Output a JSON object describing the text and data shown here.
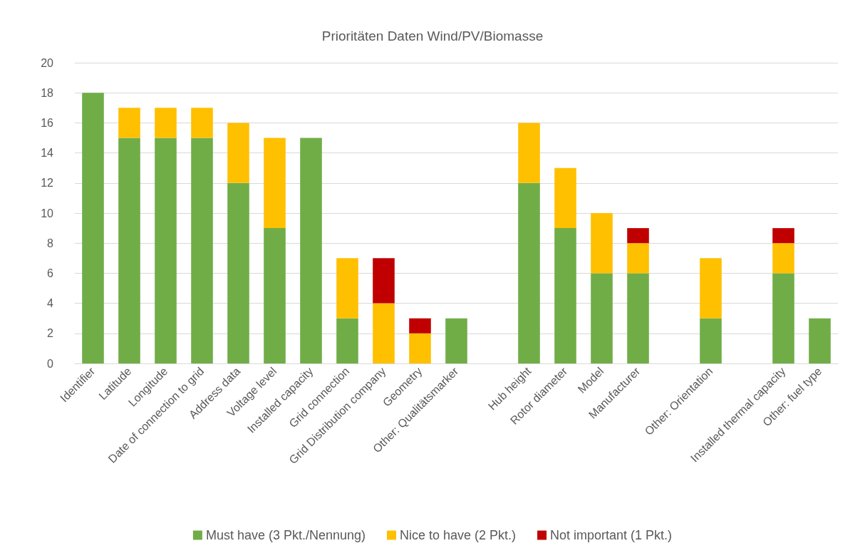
{
  "chart_data": {
    "type": "bar",
    "title": "Prioritäten Daten Wind/PV/Biomasse",
    "stacked": true,
    "grid": "y",
    "legend": "bottom",
    "categories": [
      "Identifier",
      "Latitude",
      "Longitude",
      "Date of connection to grid",
      "Address data",
      "Voltage level",
      "Installed capacity",
      "Grid connection",
      "Grid Distribution company",
      "Geometry",
      "Other: Qualitätsmarker",
      null,
      "Hub height",
      "Rotor diameter",
      "Model",
      "Manufacturer",
      null,
      "Other: Orientation",
      null,
      "Installed thermal capacity",
      "Other: fuel type"
    ],
    "series": [
      {
        "name": "Must have (3 Pkt./Nennung)",
        "color": "#70ad47",
        "values": [
          18,
          15,
          15,
          15,
          12,
          9,
          15,
          3,
          0,
          0,
          3,
          null,
          12,
          9,
          6,
          6,
          null,
          3,
          null,
          6,
          3
        ]
      },
      {
        "name": "Nice to have (2 Pkt.)",
        "color": "#ffc000",
        "values": [
          0,
          2,
          2,
          2,
          4,
          6,
          0,
          4,
          4,
          2,
          0,
          null,
          4,
          4,
          4,
          2,
          null,
          4,
          null,
          2,
          0
        ]
      },
      {
        "name": "Not important (1 Pkt.)",
        "color": "#c00000",
        "values": [
          0,
          0,
          0,
          0,
          0,
          0,
          0,
          0,
          3,
          1,
          0,
          null,
          0,
          0,
          0,
          1,
          null,
          0,
          null,
          1,
          0
        ]
      }
    ],
    "ylim": [
      0,
      20
    ],
    "yticks": [
      0,
      2,
      4,
      6,
      8,
      10,
      12,
      14,
      16,
      18,
      20
    ]
  }
}
